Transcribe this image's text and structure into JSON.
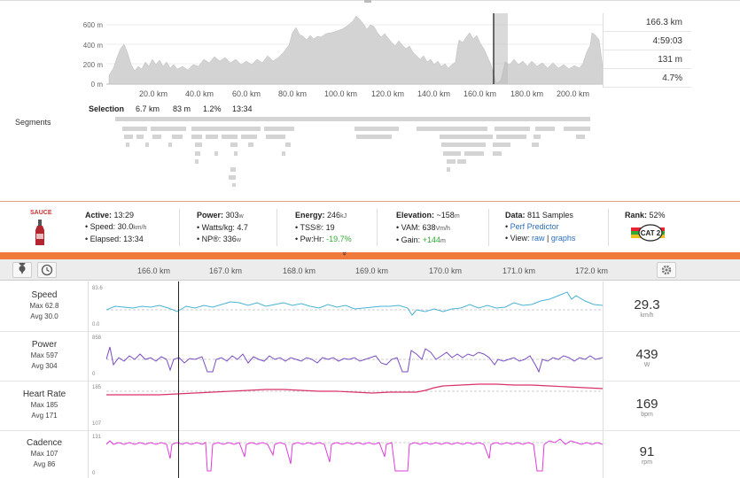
{
  "elevation": {
    "y_ticks": [
      "600 m",
      "400 m",
      "200 m",
      "0 m"
    ],
    "x_ticks": [
      "20.0 km",
      "40.0 km",
      "60.0 km",
      "80.0 km",
      "100.0 km",
      "120.0 km",
      "140.0 km",
      "160.0 km",
      "180.0 km",
      "200.0 km"
    ],
    "stats": [
      "166.3 km",
      "4:59:03",
      "131 m",
      "4.7%"
    ]
  },
  "selection": {
    "label": "Selection",
    "values": [
      "6.7 km",
      "83 m",
      "1.2%",
      "13:34"
    ]
  },
  "segments_label": "Segments",
  "sauce": {
    "logo": "SAUCE",
    "active": {
      "label": "Active:",
      "value": "13:29",
      "lines": [
        "Speed: 30.0",
        "Elapsed: 13:34"
      ],
      "speed_unit": "km/h"
    },
    "power": {
      "label": "Power:",
      "value": "303",
      "unit": "w",
      "lines": [
        "Watts/kg: 4.7",
        "NP®: 336"
      ],
      "np_unit": "w"
    },
    "energy": {
      "label": "Energy:",
      "value": "246",
      "unit": "kJ",
      "tss": "TSS®: 19",
      "pwhr_label": "Pw:Hr:",
      "pwhr_value": "-19.7%"
    },
    "elevation": {
      "label": "Elevation:",
      "value": "~158",
      "unit": "m",
      "vam": "VAM: 638",
      "vam_unit": "Vm/h",
      "gain_label": "Gain:",
      "gain_value": "+144",
      "gain_unit": "m"
    },
    "data": {
      "label": "Data:",
      "value": "811 Samples",
      "perf": "Perf Predictor",
      "view_label": "View:",
      "view_raw": "raw",
      "view_graphs": "graphs"
    },
    "rank": {
      "label": "Rank:",
      "value": "52%",
      "badge": "CAT 2"
    },
    "expand_icon": "»"
  },
  "stream_axis": [
    "166.0 km",
    "167.0 km",
    "168.0 km",
    "169.0 km",
    "170.0 km",
    "171.0 km",
    "172.0 km"
  ],
  "streams": [
    {
      "name": "Speed",
      "max": "Max 62.8",
      "avg": "Avg 30.0",
      "value": "29.3",
      "unit": "km/h",
      "top": "83.6",
      "bottom": "0.0",
      "color": "#4ab3d6"
    },
    {
      "name": "Power",
      "max": "Max 597",
      "avg": "Avg 304",
      "value": "439",
      "unit": "W",
      "top": "858",
      "bottom": "0",
      "color": "#7a4cc2"
    },
    {
      "name": "Heart Rate",
      "max": "Max 185",
      "avg": "Avg 171",
      "value": "169",
      "unit": "bpm",
      "top": "185",
      "bottom": "107",
      "color": "#d9326a"
    },
    {
      "name": "Cadence",
      "max": "Max 107",
      "avg": "Avg 86",
      "value": "91",
      "unit": "rpm",
      "top": "131",
      "bottom": "0",
      "color": "#e03bdc"
    }
  ]
}
